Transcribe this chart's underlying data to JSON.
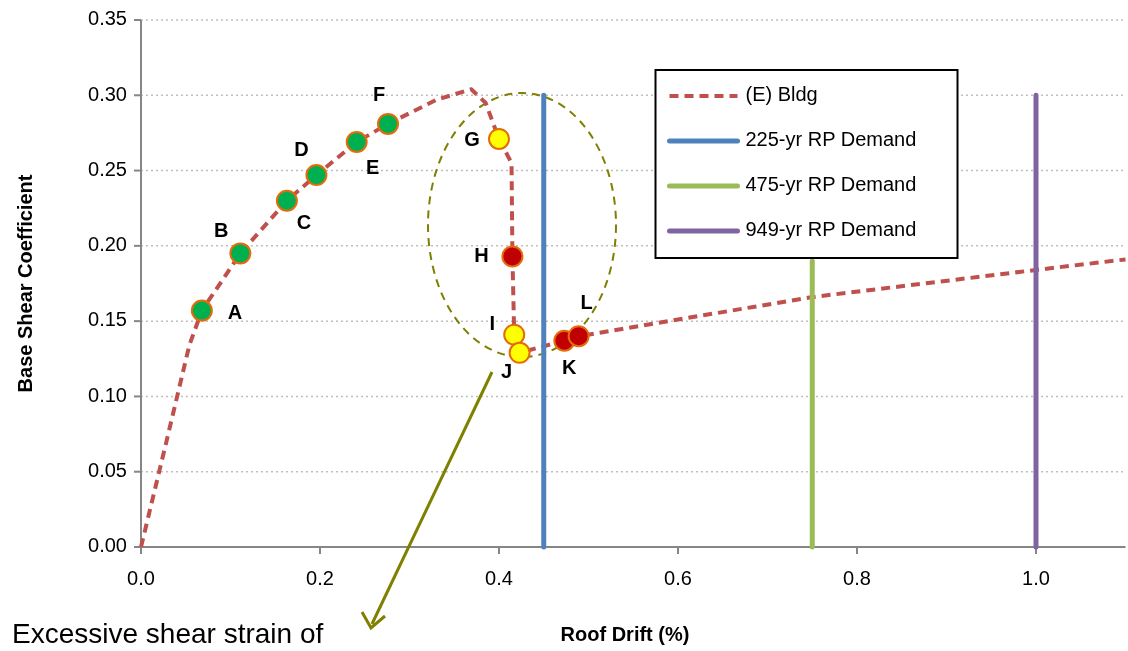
{
  "chart_data": {
    "type": "line",
    "xlabel": "Roof Drift (%)",
    "ylabel": "Base Shear Coefficient",
    "xlim": [
      0,
      1.1
    ],
    "ylim": [
      0,
      0.35
    ],
    "xticks": [
      {
        "value": 0,
        "label": "0.0"
      },
      0.2,
      0.4,
      0.6,
      0.8,
      {
        "value": 1,
        "label": "1.0"
      }
    ],
    "yticks": [
      {
        "value": 0,
        "label": "0.00"
      },
      0.05,
      {
        "value": 0.1,
        "label": "0.10"
      },
      0.15,
      {
        "value": 0.2,
        "label": "0.20"
      },
      0.25,
      {
        "value": 0.3,
        "label": "0.30"
      },
      0.35
    ],
    "grid": "y",
    "legend": "top right",
    "series": [
      {
        "name": "(E) Bldg",
        "type": "line",
        "color": "#c0504d",
        "line_style": "dashed",
        "marker": "none",
        "x": [
          0,
          0.028,
          0.054,
          0.068,
          0.111,
          0.163,
          0.196,
          0.241,
          0.276,
          0.33,
          0.369,
          0.385,
          0.4,
          0.414,
          0.415,
          0.417,
          0.423,
          0.473,
          0.489,
          0.75,
          1.0,
          1.1
        ],
        "values": [
          0,
          0.069,
          0.134,
          0.157,
          0.195,
          0.23,
          0.247,
          0.269,
          0.281,
          0.297,
          0.304,
          0.295,
          0.271,
          0.255,
          0.193,
          0.141,
          0.129,
          0.137,
          0.14,
          0.166,
          0.184,
          0.191
        ]
      },
      {
        "type": "scatter",
        "marker": "circle",
        "color": "#e46c0a",
        "colors": [
          "#00b050",
          "#00b050",
          "#00b050",
          "#00b050",
          "#00b050",
          "#00b050",
          "#ffff00",
          "#c00000",
          "#ffff00",
          "#ffff00",
          "#c00000",
          "#c00000"
        ],
        "x": [
          0.068,
          0.111,
          0.163,
          0.196,
          0.241,
          0.276,
          0.4,
          0.415,
          0.417,
          0.423,
          0.473,
          0.489
        ],
        "values": [
          0.157,
          0.195,
          0.23,
          0.247,
          0.269,
          0.281,
          0.271,
          0.193,
          0.141,
          0.129,
          0.137,
          0.14
        ]
      },
      {
        "name": "225-yr RP Demand",
        "type": "line",
        "color": "#4f81bd",
        "line_style": "solid",
        "marker": "none",
        "x": [
          0.45,
          0.45
        ],
        "values": [
          0,
          0.3
        ]
      },
      {
        "name": "475-yr RP Demand",
        "type": "line",
        "color": "#9bbb59",
        "line_style": "solid",
        "marker": "none",
        "x": [
          0.75,
          0.75
        ],
        "values": [
          0,
          0.19
        ]
      },
      {
        "name": "949-yr RP Demand",
        "type": "line",
        "color": "#8064a2",
        "line_style": "solid",
        "marker": "none",
        "x": [
          1.0,
          1.0
        ],
        "values": [
          0,
          0.3
        ]
      }
    ],
    "annotations": [
      {
        "text": "A",
        "x": 0.068,
        "y": 0.157
      },
      {
        "text": "B",
        "x": 0.111,
        "y": 0.195
      },
      {
        "text": "C",
        "x": 0.163,
        "y": 0.23
      },
      {
        "text": "D",
        "x": 0.196,
        "y": 0.247
      },
      {
        "text": "E",
        "x": 0.241,
        "y": 0.269
      },
      {
        "text": "F",
        "x": 0.276,
        "y": 0.281
      },
      {
        "text": "G",
        "x": 0.4,
        "y": 0.271
      },
      {
        "text": "H",
        "x": 0.415,
        "y": 0.193
      },
      {
        "text": "I",
        "x": 0.417,
        "y": 0.141
      },
      {
        "text": "J",
        "x": 0.423,
        "y": 0.129
      },
      {
        "text": "K",
        "x": 0.473,
        "y": 0.137
      },
      {
        "text": "L",
        "x": 0.489,
        "y": 0.14
      },
      "Excessive shear strain of"
    ]
  }
}
